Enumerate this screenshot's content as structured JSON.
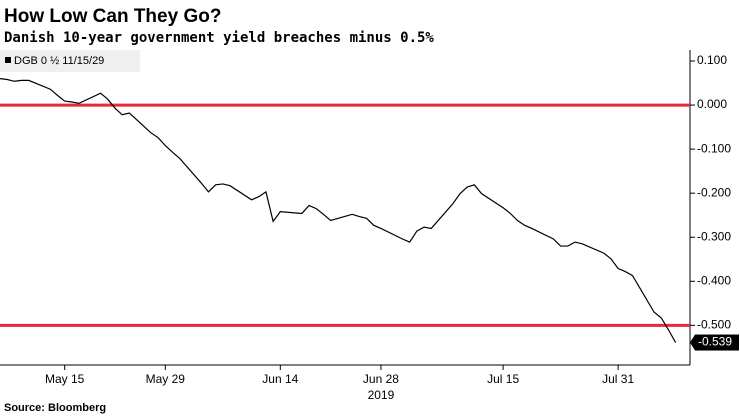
{
  "chart_data": {
    "type": "line",
    "title": "How Low Can They Go?",
    "subtitle": "Danish 10-year government yield breaches minus 0.5%",
    "source": "Source: Bloomberg",
    "x_year_label": "2019",
    "series": [
      {
        "name": "DGB 0 ½ 11/15/29",
        "color": "#000000",
        "x": [
          "2019-05-06",
          "2019-05-07",
          "2019-05-08",
          "2019-05-09",
          "2019-05-10",
          "2019-05-13",
          "2019-05-14",
          "2019-05-15",
          "2019-05-16",
          "2019-05-17",
          "2019-05-20",
          "2019-05-21",
          "2019-05-22",
          "2019-05-23",
          "2019-05-24",
          "2019-05-27",
          "2019-05-28",
          "2019-05-29",
          "2019-05-30",
          "2019-05-31",
          "2019-06-03",
          "2019-06-04",
          "2019-06-05",
          "2019-06-06",
          "2019-06-07",
          "2019-06-10",
          "2019-06-11",
          "2019-06-12",
          "2019-06-13",
          "2019-06-14",
          "2019-06-17",
          "2019-06-18",
          "2019-06-19",
          "2019-06-20",
          "2019-06-21",
          "2019-06-24",
          "2019-06-25",
          "2019-06-26",
          "2019-06-27",
          "2019-06-28",
          "2019-07-01",
          "2019-07-02",
          "2019-07-03",
          "2019-07-04",
          "2019-07-05",
          "2019-07-08",
          "2019-07-09",
          "2019-07-10",
          "2019-07-11",
          "2019-07-12",
          "2019-07-15",
          "2019-07-16",
          "2019-07-17",
          "2019-07-18",
          "2019-07-19",
          "2019-07-22",
          "2019-07-23",
          "2019-07-24",
          "2019-07-25",
          "2019-07-26",
          "2019-07-29",
          "2019-07-30",
          "2019-07-31",
          "2019-08-01",
          "2019-08-02",
          "2019-08-05",
          "2019-08-06",
          "2019-08-07",
          "2019-08-08"
        ],
        "values": [
          0.06,
          0.058,
          0.054,
          0.056,
          0.056,
          0.036,
          0.022,
          0.009,
          0.007,
          0.004,
          0.027,
          0.013,
          -0.007,
          -0.022,
          -0.018,
          -0.063,
          -0.074,
          -0.092,
          -0.107,
          -0.121,
          -0.177,
          -0.197,
          -0.181,
          -0.179,
          -0.183,
          -0.215,
          -0.208,
          -0.197,
          -0.264,
          -0.242,
          -0.246,
          -0.228,
          -0.235,
          -0.248,
          -0.262,
          -0.248,
          -0.253,
          -0.257,
          -0.273,
          -0.28,
          -0.304,
          -0.311,
          -0.286,
          -0.277,
          -0.28,
          -0.224,
          -0.201,
          -0.186,
          -0.181,
          -0.201,
          -0.233,
          -0.246,
          -0.262,
          -0.273,
          -0.28,
          -0.304,
          -0.32,
          -0.32,
          -0.311,
          -0.315,
          -0.336,
          -0.349,
          -0.371,
          -0.378,
          -0.387,
          -0.47,
          -0.483,
          -0.51,
          -0.539
        ]
      }
    ],
    "reference_lines": [
      0,
      -0.5
    ],
    "reference_color": "#e8283c",
    "xlim": [
      "2019-05-06",
      "2019-08-10"
    ],
    "xticks": [
      {
        "value": "2019-05-15",
        "label": "May 15"
      },
      {
        "value": "2019-05-29",
        "label": "May 29"
      },
      {
        "value": "2019-06-14",
        "label": "Jun 14"
      },
      {
        "value": "2019-06-28",
        "label": "Jun 28"
      },
      {
        "value": "2019-07-15",
        "label": "Jul 15"
      },
      {
        "value": "2019-07-31",
        "label": "Jul 31"
      }
    ],
    "ylim": [
      -0.59,
      0.125
    ],
    "yticks": [
      {
        "value": 0.1,
        "label": "0.100"
      },
      {
        "value": 0,
        "label": "0.000"
      },
      {
        "value": -0.1,
        "label": "-0.100"
      },
      {
        "value": -0.2,
        "label": "-0.200"
      },
      {
        "value": -0.3,
        "label": "-0.300"
      },
      {
        "value": -0.4,
        "label": "-0.400"
      },
      {
        "value": -0.5,
        "label": "-0.500"
      }
    ],
    "y_axis_side": "right"
  }
}
